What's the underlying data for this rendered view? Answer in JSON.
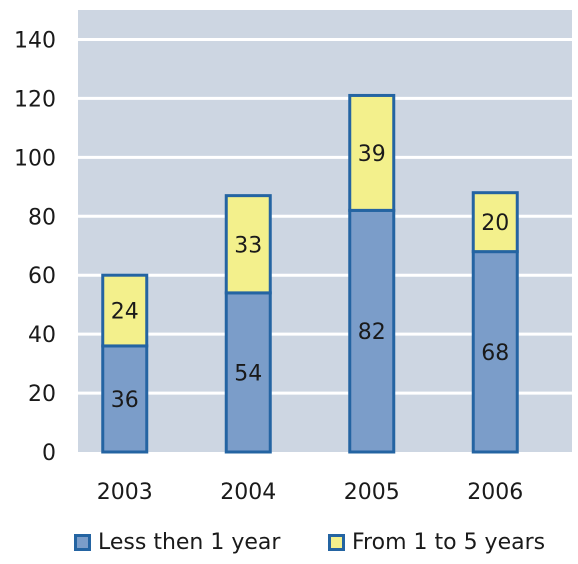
{
  "chart_data": {
    "type": "bar",
    "stacked": true,
    "categories": [
      "2003",
      "2004",
      "2005",
      "2006"
    ],
    "series": [
      {
        "name": "Less then 1 year",
        "values": [
          36,
          54,
          82,
          68
        ],
        "color": "#7b9dc9"
      },
      {
        "name": "From 1 to 5 years",
        "values": [
          24,
          33,
          39,
          20
        ],
        "color": "#f3f08c"
      }
    ],
    "ylim": [
      0,
      150
    ],
    "yticks": [
      0,
      20,
      40,
      60,
      80,
      100,
      120,
      140
    ],
    "grid": true,
    "legend_position": "bottom",
    "plot_background": "#cdd6e2",
    "bar_border_color": "#2464a2",
    "gridline_color": "#ffffff"
  }
}
